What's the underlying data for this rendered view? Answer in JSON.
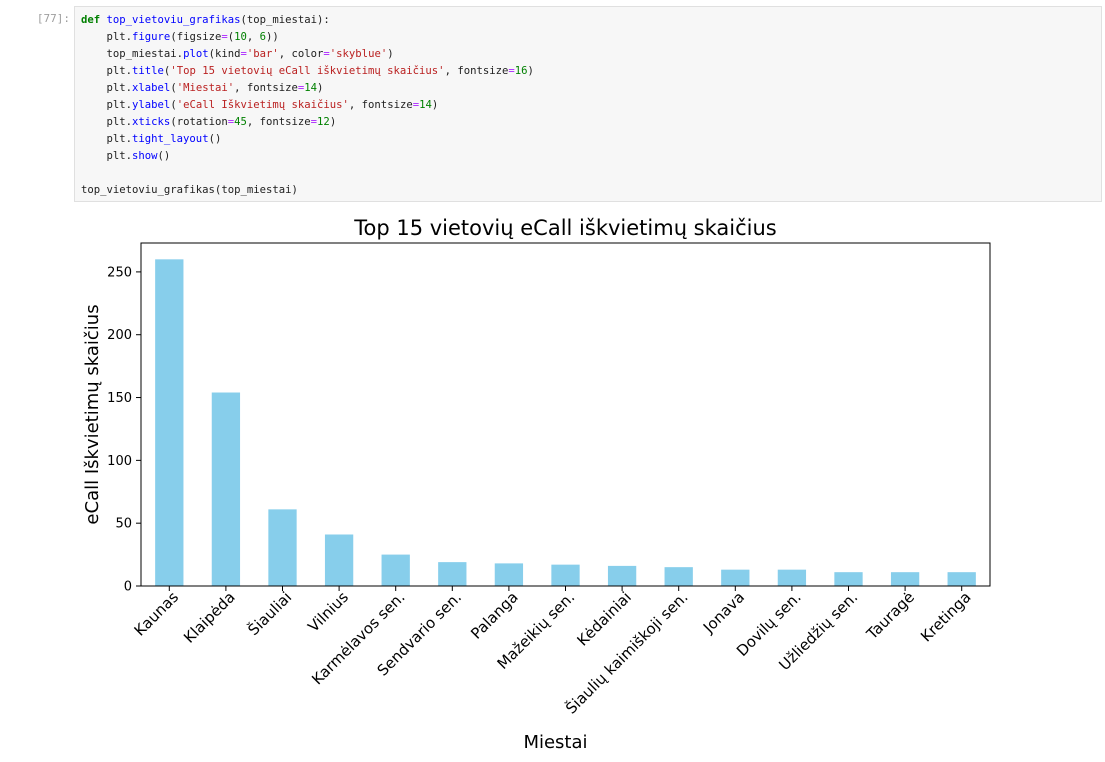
{
  "cell": {
    "prompt": "[77]:",
    "code_lines": [
      [
        [
          "kw",
          "def "
        ],
        [
          "fn",
          "top_vietoviu_grafikas"
        ],
        [
          "plain",
          "(top_miestai):"
        ]
      ],
      [
        [
          "plain",
          "    plt."
        ],
        [
          "fn",
          "figure"
        ],
        [
          "plain",
          "(figsize"
        ],
        [
          "op",
          "="
        ],
        [
          "plain",
          "("
        ],
        [
          "num",
          "10"
        ],
        [
          "plain",
          ", "
        ],
        [
          "num",
          "6"
        ],
        [
          "plain",
          "))"
        ]
      ],
      [
        [
          "plain",
          "    top_miestai."
        ],
        [
          "fn",
          "plot"
        ],
        [
          "plain",
          "(kind"
        ],
        [
          "op",
          "="
        ],
        [
          "str",
          "'bar'"
        ],
        [
          "plain",
          ", color"
        ],
        [
          "op",
          "="
        ],
        [
          "str",
          "'skyblue'"
        ],
        [
          "plain",
          ")"
        ]
      ],
      [
        [
          "plain",
          "    plt."
        ],
        [
          "fn",
          "title"
        ],
        [
          "plain",
          "("
        ],
        [
          "str",
          "'Top 15 vietovių eCall iškvietimų skaičius'"
        ],
        [
          "plain",
          ", fontsize"
        ],
        [
          "op",
          "="
        ],
        [
          "num",
          "16"
        ],
        [
          "plain",
          ")"
        ]
      ],
      [
        [
          "plain",
          "    plt."
        ],
        [
          "fn",
          "xlabel"
        ],
        [
          "plain",
          "("
        ],
        [
          "str",
          "'Miestai'"
        ],
        [
          "plain",
          ", fontsize"
        ],
        [
          "op",
          "="
        ],
        [
          "num",
          "14"
        ],
        [
          "plain",
          ")"
        ]
      ],
      [
        [
          "plain",
          "    plt."
        ],
        [
          "fn",
          "ylabel"
        ],
        [
          "plain",
          "("
        ],
        [
          "str",
          "'eCall Iškvietimų skaičius'"
        ],
        [
          "plain",
          ", fontsize"
        ],
        [
          "op",
          "="
        ],
        [
          "num",
          "14"
        ],
        [
          "plain",
          ")"
        ]
      ],
      [
        [
          "plain",
          "    plt."
        ],
        [
          "fn",
          "xticks"
        ],
        [
          "plain",
          "(rotation"
        ],
        [
          "op",
          "="
        ],
        [
          "num",
          "45"
        ],
        [
          "plain",
          ", fontsize"
        ],
        [
          "op",
          "="
        ],
        [
          "num",
          "12"
        ],
        [
          "plain",
          ")"
        ]
      ],
      [
        [
          "plain",
          "    plt."
        ],
        [
          "fn",
          "tight_layout"
        ],
        [
          "plain",
          "()"
        ]
      ],
      [
        [
          "plain",
          "    plt."
        ],
        [
          "fn",
          "show"
        ],
        [
          "plain",
          "()"
        ]
      ],
      [
        [
          "plain",
          ""
        ]
      ],
      [
        [
          "plain",
          "top_vietoviu_grafikas(top_miestai)"
        ]
      ]
    ]
  },
  "chart_data": {
    "type": "bar",
    "title": "Top 15 vietovių eCall iškvietimų skaičius",
    "xlabel": "Miestai",
    "ylabel": "eCall Iškvietimų skaičius",
    "categories": [
      "Kaunas",
      "Klaipėda",
      "Šiauliai",
      "Vilnius",
      "Karmėlavos sen.",
      "Sendvario sen.",
      "Palanga",
      "Mažeikių sen.",
      "Kėdainiai",
      "Šiaulių kaimiškoji sen.",
      "Jonava",
      "Dovilų sen.",
      "Užliedžių sen.",
      "Tauragė",
      "Kretinga"
    ],
    "values": [
      260,
      154,
      61,
      41,
      25,
      19,
      18,
      17,
      16,
      15,
      13,
      13,
      11,
      11,
      11
    ],
    "yticks": [
      0,
      50,
      100,
      150,
      200,
      250
    ],
    "ylim": [
      0,
      273
    ],
    "grid": false,
    "bar_color": "#87ceeb",
    "xtick_rotation": 45
  }
}
